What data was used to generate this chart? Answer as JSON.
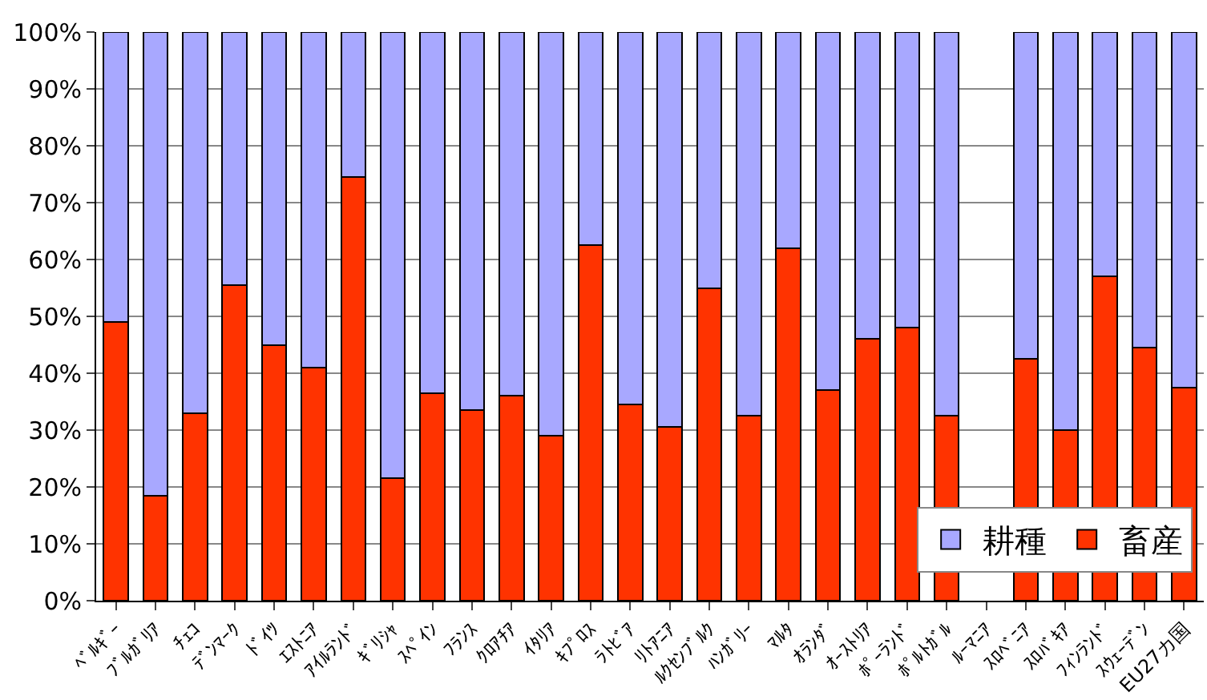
{
  "chart_data": {
    "type": "bar",
    "stacked": true,
    "categories": [
      "ﾍﾞﾙｷﾞｰ",
      "ﾌﾞﾙｶﾞﾘｱ",
      "ﾁｪｺ",
      "ﾃﾞﾝﾏｰｸ",
      "ﾄﾞｲﾂ",
      "ｴｽﾄﾆｱ",
      "ｱｲﾙﾗﾝﾄﾞ",
      "ｷﾞﾘｼｬ",
      "ｽﾍﾟｲﾝ",
      "ﾌﾗﾝｽ",
      "ｸﾛｱﾁｱ",
      "ｲﾀﾘｱ",
      "ｷﾌﾟﾛｽ",
      "ﾗﾄﾋﾞｱ",
      "ﾘﾄｱﾆｱ",
      "ﾙｸｾﾝﾌﾞﾙｸ",
      "ﾊﾝｶﾞﾘｰ",
      "ﾏﾙﾀ",
      "ｵﾗﾝﾀﾞ",
      "ｵｰｽﾄﾘｱ",
      "ﾎﾟｰﾗﾝﾄﾞ",
      "ﾎﾟﾙﾄｶﾞﾙ",
      "ﾙｰﾏﾆｱ",
      "ｽﾛﾍﾞﾆｱ",
      "ｽﾛﾊﾞｷｱ",
      "ﾌｨﾝﾗﾝﾄﾞ",
      "ｽｳｪｰﾃﾞﾝ",
      "EU27カ国"
    ],
    "series": [
      {
        "name": "畜産",
        "color": "#ff3300",
        "values": [
          49,
          18.5,
          33,
          55.5,
          45,
          41,
          74.5,
          21.5,
          36.5,
          33.5,
          36,
          29,
          62.5,
          34.5,
          30.5,
          55,
          32.5,
          62,
          37,
          46,
          48,
          32.5,
          null,
          42.5,
          30,
          57,
          44.5,
          37.5
        ]
      },
      {
        "name": "耕種",
        "color": "#a8a8ff",
        "values": [
          51,
          81.5,
          67,
          44.5,
          55,
          59,
          25.5,
          78.5,
          63.5,
          66.5,
          64,
          71,
          37.5,
          65.5,
          69.5,
          45,
          67.5,
          38,
          63,
          54,
          52,
          67.5,
          null,
          57.5,
          70,
          43,
          55.5,
          62.5
        ]
      }
    ],
    "ylim": [
      0,
      100
    ],
    "yticks": [
      {
        "value": 0,
        "label": "0%"
      },
      {
        "value": 10,
        "label": "10%"
      },
      {
        "value": 20,
        "label": "20%"
      },
      {
        "value": 30,
        "label": "30%"
      },
      {
        "value": 40,
        "label": "40%"
      },
      {
        "value": 50,
        "label": "50%"
      },
      {
        "value": 60,
        "label": "60%"
      },
      {
        "value": 70,
        "label": "70%"
      },
      {
        "value": 80,
        "label": "80%"
      },
      {
        "value": 90,
        "label": "90%"
      },
      {
        "value": 100,
        "label": "100%"
      }
    ],
    "grid": "y",
    "legend": "bottom right"
  }
}
